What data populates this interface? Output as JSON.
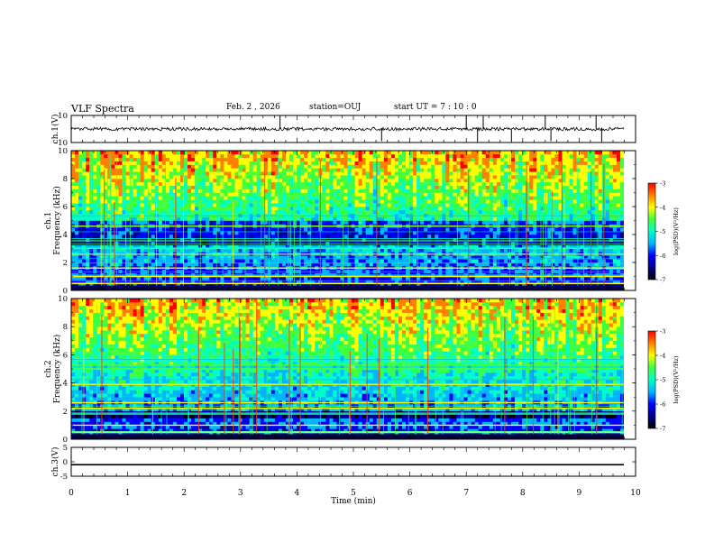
{
  "header": {
    "title": "VLF Spectra",
    "date": "Feb. 2 , 2026",
    "station": "station=OUJ",
    "start": "start  UT  =   7 : 10 : 0"
  },
  "colorbar": {
    "ticks": [
      "-3",
      "-4",
      "-5",
      "-6",
      "-7"
    ],
    "label": "log(PSD)(V²/Hz)",
    "colors": [
      "#000000",
      "#00008b",
      "#0000ff",
      "#00b4ff",
      "#00ffc8",
      "#40ff40",
      "#ffff00",
      "#ff8000",
      "#ff0000",
      "#ffffff"
    ]
  },
  "chart_data": [
    {
      "type": "line",
      "name": "ch1-waveform",
      "ylabel": "ch.1(V)",
      "ylim": [
        -10,
        10
      ],
      "yticks": [
        "10",
        "-10"
      ],
      "baseline": 0,
      "noise_amplitude": 1.2,
      "spikes_at_min": [
        3.7,
        5.5,
        7.0,
        7.2,
        7.3,
        7.8,
        8.4,
        8.5,
        9.3,
        9.4
      ]
    },
    {
      "type": "heatmap",
      "name": "ch1-spectrogram",
      "ylabel": "ch.1 Frequency  (kHz)",
      "ylim": [
        0,
        10
      ],
      "yticks": [
        "0",
        "2",
        "4",
        "6",
        "8",
        "10"
      ],
      "clim": [
        -7,
        -3
      ],
      "bands_khz": [
        0.5,
        1.0,
        1.6,
        2.6,
        3.0,
        4.6
      ],
      "quiet_band_khz": [
        3.2,
        4.9
      ]
    },
    {
      "type": "heatmap",
      "name": "ch2-spectrogram",
      "ylabel": "ch.2 Frequency  (kHz)",
      "ylim": [
        0,
        10
      ],
      "yticks": [
        "0",
        "2",
        "4",
        "6",
        "8",
        "10"
      ],
      "clim": [
        -7,
        -3
      ],
      "bands_khz": [
        0.5,
        1.0,
        2.2,
        2.6,
        3.9,
        5.0,
        5.3
      ],
      "quiet_band_khz": [
        1.4,
        2.0
      ]
    },
    {
      "type": "line",
      "name": "ch3-waveform",
      "ylabel": "ch.3(V)",
      "ylim": [
        -5,
        5
      ],
      "yticks": [
        "5",
        "0",
        "-5"
      ],
      "value": -1.0
    }
  ],
  "xaxis": {
    "label": "Time  (min)",
    "range": [
      0,
      10
    ],
    "ticks": [
      "0",
      "1",
      "2",
      "3",
      "4",
      "5",
      "6",
      "7",
      "8",
      "9",
      "10"
    ]
  }
}
